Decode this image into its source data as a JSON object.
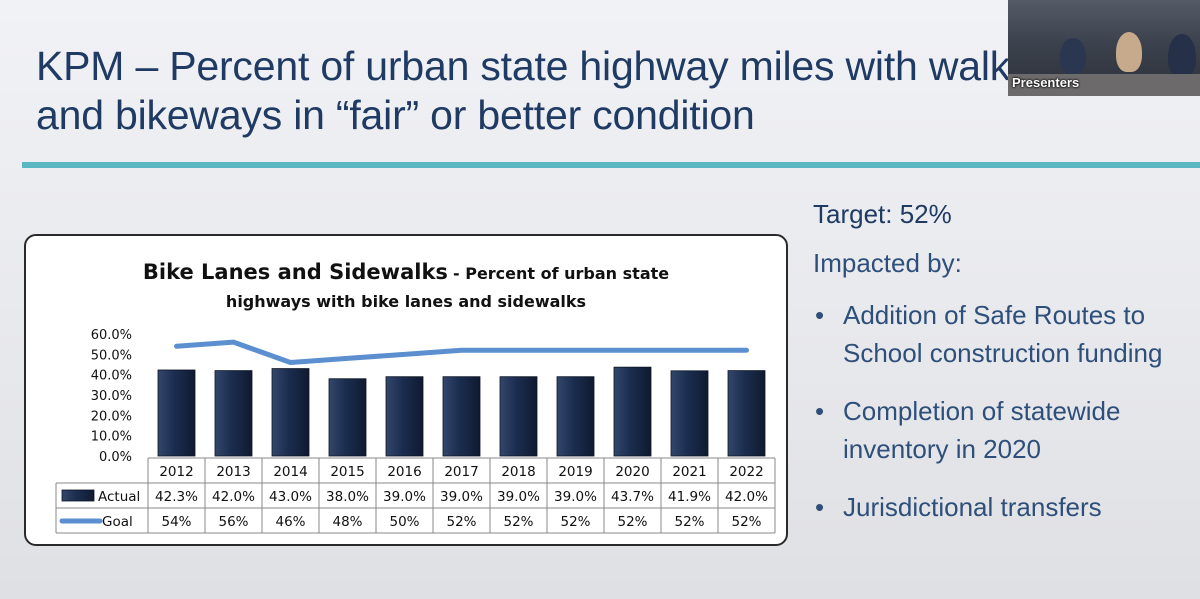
{
  "slide": {
    "title": "KPM – Percent of urban state highway miles with walkways and bikeways in “fair” or better condition",
    "target": "Target: 52%",
    "impacted_label": "Impacted by:",
    "bullets": [
      "Addition of Safe Routes to School construction funding",
      "Completion of statewide inventory in 2020",
      "Jurisdictional transfers"
    ]
  },
  "video": {
    "label": "Presenters"
  },
  "colors": {
    "title": "#1f3a63",
    "accent_rule": "#58b7c1",
    "bar": "#1b2d4f",
    "goal_line": "#5b8fd0",
    "body_text": "#2e4f7a"
  },
  "chart_data": {
    "type": "bar",
    "title": "Bike Lanes and Sidewalks",
    "subtitle": "Percent of urban state highways with bike lanes and sidewalks",
    "categories": [
      "2012",
      "2013",
      "2014",
      "2015",
      "2016",
      "2017",
      "2018",
      "2019",
      "2020",
      "2021",
      "2022"
    ],
    "series": [
      {
        "name": "Actual",
        "type": "bar",
        "values": [
          42.3,
          42.0,
          43.0,
          38.0,
          39.0,
          39.0,
          39.0,
          39.0,
          43.7,
          41.9,
          42.0
        ],
        "labels": [
          "42.3%",
          "42.0%",
          "43.0%",
          "38.0%",
          "39.0%",
          "39.0%",
          "39.0%",
          "39.0%",
          "43.7%",
          "41.9%",
          "42.0%"
        ]
      },
      {
        "name": "Goal",
        "type": "line",
        "values": [
          54,
          56,
          46,
          48,
          50,
          52,
          52,
          52,
          52,
          52,
          52
        ],
        "labels": [
          "54%",
          "56%",
          "46%",
          "48%",
          "50%",
          "52%",
          "52%",
          "52%",
          "52%",
          "52%",
          "52%"
        ]
      }
    ],
    "yticks": [
      "0.0%",
      "10.0%",
      "20.0%",
      "30.0%",
      "40.0%",
      "50.0%",
      "60.0%"
    ],
    "ylim": [
      0,
      60
    ],
    "data_table": true
  }
}
